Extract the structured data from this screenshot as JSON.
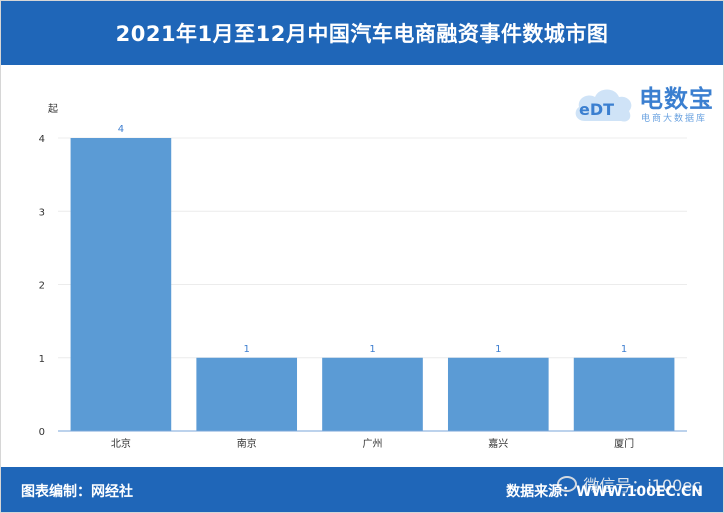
{
  "header": {
    "title": "2021年1月至12月中国汽车电商融资事件数城市图"
  },
  "logo": {
    "name": "电数宝",
    "subtitle": "电商大数据库",
    "mark": "eDT"
  },
  "footer": {
    "editor": "图表编制：网经社",
    "source": "数据来源：WWW.100EC.CN",
    "watermark": "微信号：i100ec"
  },
  "chart_data": {
    "type": "bar",
    "title": "2021年1月至12月中国汽车电商融资事件数城市图",
    "ylabel": "起",
    "xlabel": "",
    "categories": [
      "北京",
      "南京",
      "广州",
      "嘉兴",
      "厦门"
    ],
    "values": [
      4,
      1,
      1,
      1,
      1
    ],
    "ylim": [
      0,
      4
    ],
    "yticks": [
      0,
      1,
      2,
      3,
      4
    ],
    "grid": true,
    "color": "#5b9bd5",
    "data_labels": [
      "4",
      "1",
      "1",
      "1",
      "1"
    ]
  }
}
